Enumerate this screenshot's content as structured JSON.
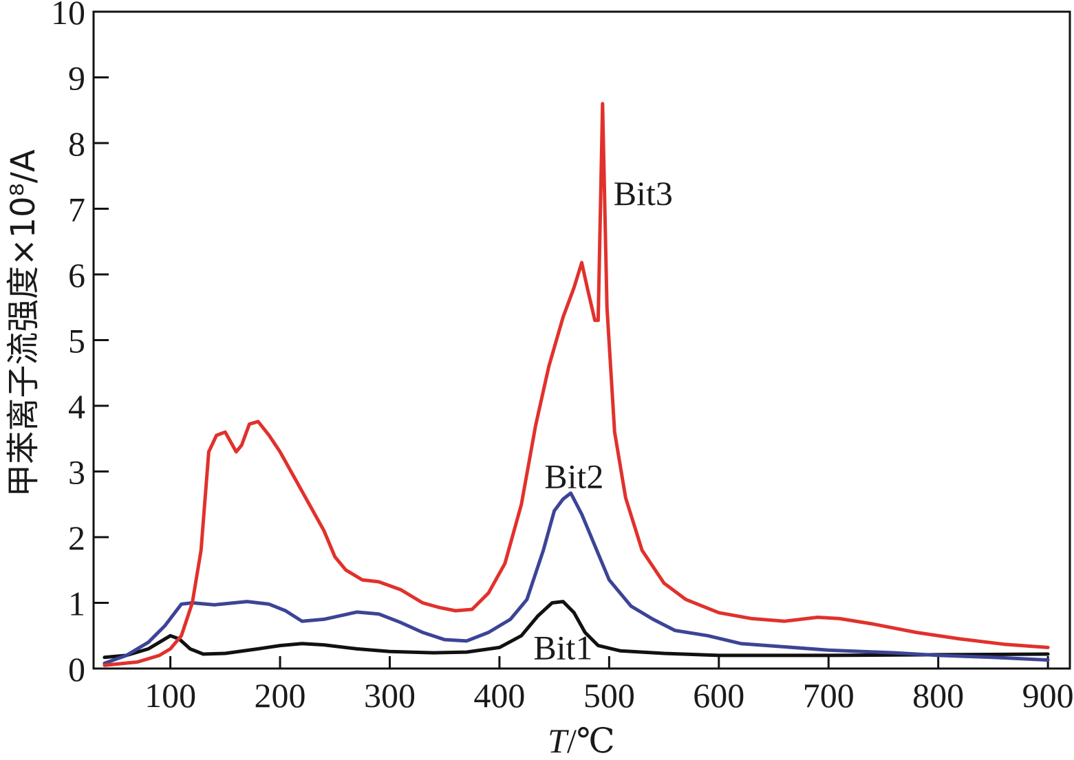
{
  "chart_data": {
    "type": "line",
    "title": "",
    "xlabel": "T/℃",
    "xlabel_var": "T",
    "xlabel_unit": "/℃",
    "ylabel": "甲苯离子流强度×10⁸/A",
    "xlim": [
      30,
      920
    ],
    "ylim": [
      0,
      10
    ],
    "xticks": [
      100,
      200,
      300,
      400,
      500,
      600,
      700,
      800,
      900
    ],
    "xtick_labels": [
      "100",
      "200",
      "300",
      "400",
      "500",
      "600",
      "700",
      "800",
      "900"
    ],
    "yticks": [
      0,
      1,
      2,
      3,
      4,
      5,
      6,
      7,
      8,
      9,
      10
    ],
    "ytick_labels": [
      "0",
      "1",
      "2",
      "3",
      "4",
      "5",
      "6",
      "7",
      "8",
      "9",
      "10"
    ],
    "grid": false,
    "legend": "none",
    "series": [
      {
        "name": "Bit1",
        "color": "#111111",
        "points": [
          [
            40,
            0.17
          ],
          [
            60,
            0.2
          ],
          [
            80,
            0.3
          ],
          [
            90,
            0.4
          ],
          [
            100,
            0.5
          ],
          [
            108,
            0.45
          ],
          [
            118,
            0.3
          ],
          [
            130,
            0.22
          ],
          [
            150,
            0.23
          ],
          [
            180,
            0.3
          ],
          [
            200,
            0.35
          ],
          [
            220,
            0.38
          ],
          [
            240,
            0.36
          ],
          [
            270,
            0.3
          ],
          [
            300,
            0.26
          ],
          [
            340,
            0.24
          ],
          [
            370,
            0.25
          ],
          [
            400,
            0.32
          ],
          [
            420,
            0.5
          ],
          [
            435,
            0.8
          ],
          [
            448,
            1.0
          ],
          [
            458,
            1.02
          ],
          [
            468,
            0.85
          ],
          [
            478,
            0.55
          ],
          [
            490,
            0.35
          ],
          [
            510,
            0.27
          ],
          [
            550,
            0.23
          ],
          [
            600,
            0.2
          ],
          [
            700,
            0.2
          ],
          [
            800,
            0.21
          ],
          [
            900,
            0.22
          ]
        ]
      },
      {
        "name": "Bit2",
        "color": "#3c4496",
        "points": [
          [
            40,
            0.08
          ],
          [
            60,
            0.2
          ],
          [
            80,
            0.4
          ],
          [
            95,
            0.65
          ],
          [
            110,
            0.98
          ],
          [
            120,
            1.0
          ],
          [
            140,
            0.97
          ],
          [
            170,
            1.02
          ],
          [
            190,
            0.98
          ],
          [
            205,
            0.88
          ],
          [
            220,
            0.72
          ],
          [
            240,
            0.75
          ],
          [
            270,
            0.86
          ],
          [
            290,
            0.83
          ],
          [
            310,
            0.7
          ],
          [
            330,
            0.55
          ],
          [
            350,
            0.44
          ],
          [
            370,
            0.42
          ],
          [
            390,
            0.55
          ],
          [
            410,
            0.75
          ],
          [
            425,
            1.05
          ],
          [
            440,
            1.8
          ],
          [
            450,
            2.4
          ],
          [
            458,
            2.58
          ],
          [
            465,
            2.67
          ],
          [
            475,
            2.35
          ],
          [
            490,
            1.75
          ],
          [
            500,
            1.35
          ],
          [
            520,
            0.95
          ],
          [
            540,
            0.75
          ],
          [
            560,
            0.58
          ],
          [
            590,
            0.5
          ],
          [
            620,
            0.38
          ],
          [
            660,
            0.33
          ],
          [
            700,
            0.28
          ],
          [
            760,
            0.24
          ],
          [
            800,
            0.2
          ],
          [
            850,
            0.17
          ],
          [
            900,
            0.13
          ]
        ]
      },
      {
        "name": "Bit3",
        "color": "#e1312c",
        "points": [
          [
            40,
            0.05
          ],
          [
            70,
            0.1
          ],
          [
            90,
            0.2
          ],
          [
            100,
            0.3
          ],
          [
            110,
            0.5
          ],
          [
            120,
            1.0
          ],
          [
            128,
            1.8
          ],
          [
            135,
            3.3
          ],
          [
            142,
            3.55
          ],
          [
            150,
            3.6
          ],
          [
            160,
            3.3
          ],
          [
            165,
            3.4
          ],
          [
            172,
            3.72
          ],
          [
            180,
            3.76
          ],
          [
            190,
            3.55
          ],
          [
            200,
            3.3
          ],
          [
            220,
            2.7
          ],
          [
            240,
            2.1
          ],
          [
            250,
            1.7
          ],
          [
            260,
            1.5
          ],
          [
            275,
            1.35
          ],
          [
            290,
            1.32
          ],
          [
            310,
            1.2
          ],
          [
            330,
            1.0
          ],
          [
            345,
            0.93
          ],
          [
            360,
            0.88
          ],
          [
            375,
            0.9
          ],
          [
            390,
            1.15
          ],
          [
            405,
            1.6
          ],
          [
            420,
            2.5
          ],
          [
            433,
            3.7
          ],
          [
            445,
            4.6
          ],
          [
            458,
            5.35
          ],
          [
            468,
            5.8
          ],
          [
            475,
            6.18
          ],
          [
            480,
            5.8
          ],
          [
            487,
            5.3
          ],
          [
            490,
            5.3
          ],
          [
            494,
            8.6
          ],
          [
            498,
            5.5
          ],
          [
            505,
            3.6
          ],
          [
            515,
            2.6
          ],
          [
            530,
            1.8
          ],
          [
            550,
            1.3
          ],
          [
            570,
            1.05
          ],
          [
            600,
            0.85
          ],
          [
            630,
            0.76
          ],
          [
            660,
            0.72
          ],
          [
            690,
            0.78
          ],
          [
            710,
            0.76
          ],
          [
            740,
            0.68
          ],
          [
            780,
            0.55
          ],
          [
            820,
            0.45
          ],
          [
            860,
            0.37
          ],
          [
            900,
            0.32
          ]
        ]
      }
    ],
    "annotations": [
      {
        "text": "Bit1",
        "x": 458,
        "y": 0.14
      },
      {
        "text": "Bit2",
        "x": 468,
        "y": 2.75
      },
      {
        "text": "Bit3",
        "x": 531,
        "y": 7.06
      }
    ]
  }
}
